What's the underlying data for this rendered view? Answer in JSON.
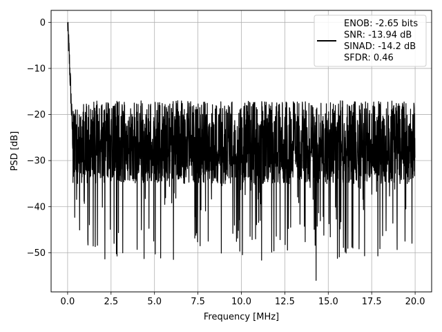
{
  "chart_data": {
    "type": "line",
    "title": "",
    "xlabel": "Frequency [MHz]",
    "ylabel": "PSD [dB]",
    "xlim": [
      -0.95,
      20.95
    ],
    "ylim": [
      -58.5,
      2.6
    ],
    "xticks": [
      0.0,
      2.5,
      5.0,
      7.5,
      10.0,
      12.5,
      15.0,
      17.5,
      20.0
    ],
    "xtick_labels": [
      "0.0",
      "2.5",
      "5.0",
      "7.5",
      "10.0",
      "12.5",
      "15.0",
      "17.5",
      "20.0"
    ],
    "yticks": [
      0,
      -10,
      -20,
      -30,
      -40,
      -50
    ],
    "ytick_labels": [
      "0",
      "−10",
      "−20",
      "−30",
      "−40",
      "−50"
    ],
    "grid": true,
    "legend_position": "top-right",
    "line_color": "#000000",
    "legend_entries": [
      "ENOB: -2.65 bits",
      "SNR: -13.94 dB",
      "SINAD: -14.2 dB",
      "SFDR: 0.46"
    ],
    "series": [
      {
        "x_start": 0.0,
        "x_end": 20.0,
        "peak": {
          "x": 0.0,
          "y": 0.0
        },
        "noise_floor_mean": -28,
        "noise_upper": -17,
        "noise_lower": -35,
        "notable_minimum": {
          "x": 14.3,
          "y": -56
        }
      }
    ]
  }
}
